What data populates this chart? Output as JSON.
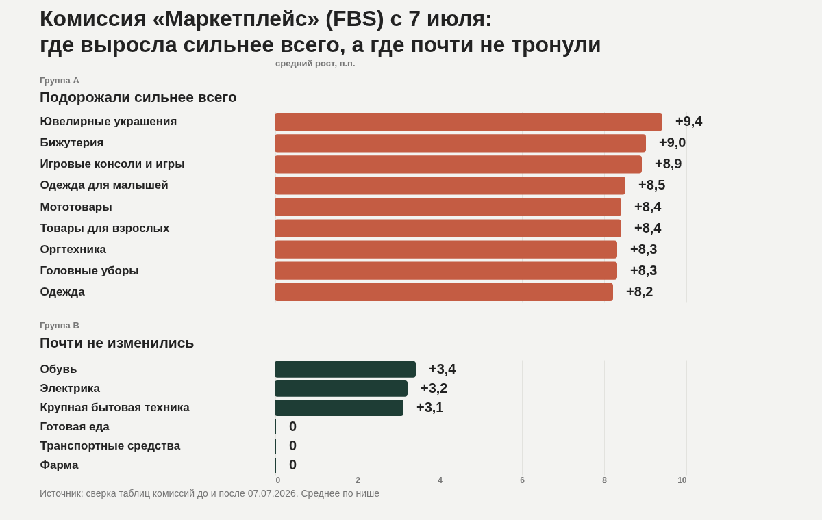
{
  "chart_data": [
    {
      "type": "bar",
      "orientation": "horizontal",
      "title": "Комиссия «Маркетплейс» (FBS) с 7 июля:\nгде выросла сильнее всего, а где почти не тронули",
      "xlabel": "средний рост, п.п.",
      "annotations": [
        "Группа А",
        "Подорожали сильнее всего"
      ],
      "categories": [
        "Ювелирные украшения",
        "Бижутерия",
        "Игровые консоли и игры",
        "Одежда для малышей",
        "Мототовары",
        "Товары для взрослых",
        "Оргтехника",
        "Головные уборы",
        "Одежда"
      ],
      "values": [
        9.4,
        9.0,
        8.9,
        8.5,
        8.4,
        8.4,
        8.3,
        8.3,
        8.2
      ],
      "value_labels": [
        "+9,4",
        "+9,0",
        "+8,9",
        "+8,5",
        "+8,4",
        "+8,4",
        "+8,3",
        "+8,3",
        "+8,2"
      ],
      "color": "#c45c43",
      "xlim": [
        0,
        10
      ],
      "xticks": [
        0,
        2,
        4,
        6,
        8,
        10
      ],
      "tick_labels": "y",
      "grid": "x"
    },
    {
      "type": "bar",
      "orientation": "horizontal",
      "annotations": [
        "Группа В",
        "Почти не изменились",
        "Источник: сверка таблиц комиссий до и после 07.07.2026. Среднее по нише"
      ],
      "categories": [
        "Обувь",
        "Электрика",
        "Крупная бытовая техника",
        "Готовая еда",
        "Транспортные средства",
        "Фарма"
      ],
      "values": [
        3.4,
        3.2,
        3.1,
        0,
        0,
        0
      ],
      "value_labels": [
        "+3,4",
        "+3,2",
        "+3,1",
        "0",
        "0",
        "0"
      ],
      "color": "#1e3d35",
      "xlim": [
        0,
        10
      ],
      "xticks": [
        0,
        2,
        4,
        6,
        8,
        10
      ],
      "grid": "x"
    }
  ]
}
